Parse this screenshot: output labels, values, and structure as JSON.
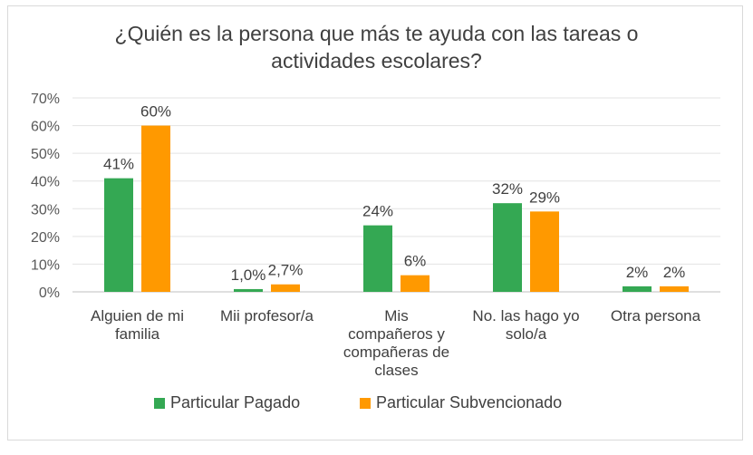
{
  "chart_data": {
    "type": "bar",
    "title_lines": [
      "¿Quién es la persona que más te ayuda con las tareas o",
      "actividades escolares?"
    ],
    "categories": [
      [
        "Alguien de mi",
        "familia"
      ],
      [
        "Mii profesor/a"
      ],
      [
        "Mis",
        "compañeros y",
        "compañeras de",
        "clases"
      ],
      [
        "No. las hago yo",
        "solo/a"
      ],
      [
        "Otra persona"
      ]
    ],
    "series": [
      {
        "name": "Particular Pagado",
        "color": "#34a853",
        "values": [
          41,
          1.0,
          24,
          32,
          2
        ],
        "labels": [
          "41%",
          "1,0%",
          "24%",
          "32%",
          "2%"
        ]
      },
      {
        "name": "Particular Subvencionado",
        "color": "#ff9900",
        "values": [
          60,
          2.7,
          6,
          29,
          2
        ],
        "labels": [
          "60%",
          "2,7%",
          "6%",
          "29%",
          "2%"
        ]
      }
    ],
    "y_ticks": [
      "0%",
      "10%",
      "20%",
      "30%",
      "40%",
      "50%",
      "60%",
      "70%"
    ],
    "ylim": [
      0,
      70
    ],
    "grid": true,
    "legend_position": "bottom"
  }
}
